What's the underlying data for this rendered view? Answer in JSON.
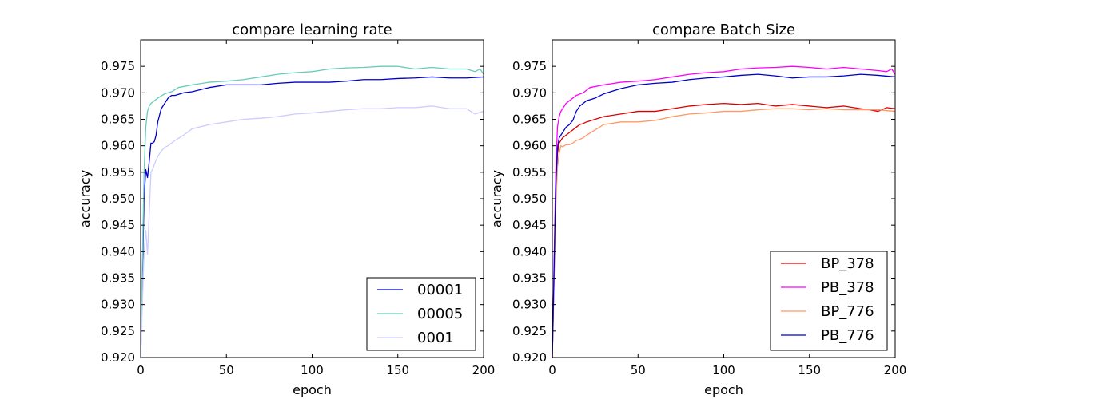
{
  "chart_data": [
    {
      "type": "line",
      "title": "compare learning rate",
      "xlabel": "epoch",
      "ylabel": "accuracy",
      "xlim": [
        0,
        200
      ],
      "ylim": [
        0.92,
        0.98
      ],
      "xticks": [
        "0",
        "50",
        "100",
        "150",
        "200"
      ],
      "yticks": [
        "0.920",
        "0.925",
        "0.930",
        "0.935",
        "0.940",
        "0.945",
        "0.950",
        "0.955",
        "0.960",
        "0.965",
        "0.970",
        "0.975"
      ],
      "grid": false,
      "legend": "lower-right",
      "series": [
        {
          "name": "00001",
          "color": "#0000cc",
          "x": [
            0,
            2,
            3,
            4,
            5,
            6,
            7,
            8,
            9,
            10,
            12,
            14,
            16,
            18,
            20,
            25,
            30,
            40,
            50,
            60,
            70,
            80,
            90,
            100,
            110,
            120,
            130,
            140,
            150,
            160,
            170,
            180,
            190,
            200
          ],
          "y": [
            0.92,
            0.95,
            0.9555,
            0.954,
            0.957,
            0.9605,
            0.9605,
            0.9608,
            0.962,
            0.9645,
            0.967,
            0.968,
            0.969,
            0.9695,
            0.9695,
            0.97,
            0.9702,
            0.971,
            0.9715,
            0.9715,
            0.9715,
            0.9718,
            0.972,
            0.972,
            0.972,
            0.9722,
            0.9725,
            0.9725,
            0.9727,
            0.9728,
            0.973,
            0.9728,
            0.9728,
            0.973
          ]
        },
        {
          "name": "00005",
          "color": "#66ccbb",
          "x": [
            0,
            2,
            3,
            4,
            5,
            6,
            8,
            10,
            14,
            18,
            22,
            30,
            40,
            50,
            60,
            70,
            80,
            90,
            100,
            110,
            120,
            130,
            140,
            150,
            160,
            170,
            180,
            190,
            195,
            198,
            200
          ],
          "y": [
            0.92,
            0.955,
            0.9635,
            0.9665,
            0.9675,
            0.968,
            0.9685,
            0.969,
            0.9698,
            0.9702,
            0.971,
            0.9715,
            0.972,
            0.9722,
            0.9725,
            0.973,
            0.9735,
            0.9738,
            0.974,
            0.9745,
            0.9747,
            0.9748,
            0.975,
            0.975,
            0.9745,
            0.9748,
            0.9745,
            0.9745,
            0.974,
            0.9745,
            0.9735
          ]
        },
        {
          "name": "0001",
          "color": "#ccccff",
          "x": [
            0,
            2,
            3,
            4,
            5,
            6,
            7,
            8,
            10,
            12,
            14,
            16,
            18,
            20,
            25,
            30,
            40,
            50,
            60,
            70,
            80,
            90,
            100,
            110,
            120,
            130,
            140,
            150,
            160,
            170,
            180,
            190,
            195,
            200
          ],
          "y": [
            0.92,
            0.94,
            0.944,
            0.9395,
            0.947,
            0.955,
            0.9555,
            0.9565,
            0.958,
            0.959,
            0.9597,
            0.96,
            0.9605,
            0.961,
            0.962,
            0.9632,
            0.964,
            0.9645,
            0.965,
            0.9652,
            0.9655,
            0.966,
            0.9662,
            0.9665,
            0.9668,
            0.967,
            0.967,
            0.9672,
            0.9672,
            0.9675,
            0.967,
            0.967,
            0.966,
            0.9665
          ]
        }
      ]
    },
    {
      "type": "line",
      "title": "compare Batch Size",
      "xlabel": "epoch",
      "ylabel": "accuracy",
      "xlim": [
        0,
        200
      ],
      "ylim": [
        0.92,
        0.98
      ],
      "xticks": [
        "0",
        "50",
        "100",
        "150",
        "200"
      ],
      "yticks": [
        "0.920",
        "0.925",
        "0.930",
        "0.935",
        "0.940",
        "0.945",
        "0.950",
        "0.955",
        "0.960",
        "0.965",
        "0.970",
        "0.975"
      ],
      "grid": false,
      "legend": "lower-right",
      "series": [
        {
          "name": "BP_378",
          "color": "#dd0000",
          "x": [
            0,
            2,
            3,
            4,
            5,
            6,
            8,
            10,
            12,
            14,
            16,
            18,
            20,
            25,
            30,
            40,
            50,
            60,
            70,
            80,
            90,
            100,
            110,
            120,
            130,
            140,
            150,
            160,
            170,
            180,
            185,
            190,
            195,
            200
          ],
          "y": [
            0.92,
            0.95,
            0.9585,
            0.9605,
            0.961,
            0.9615,
            0.962,
            0.9625,
            0.963,
            0.9635,
            0.964,
            0.9642,
            0.9645,
            0.965,
            0.9655,
            0.966,
            0.9665,
            0.9665,
            0.967,
            0.9675,
            0.9678,
            0.968,
            0.9678,
            0.968,
            0.9675,
            0.9678,
            0.9675,
            0.9672,
            0.9675,
            0.967,
            0.9668,
            0.9665,
            0.9672,
            0.967
          ]
        },
        {
          "name": "PB_378",
          "color": "#ff00ff",
          "x": [
            0,
            2,
            3,
            4,
            5,
            6,
            8,
            10,
            14,
            18,
            22,
            30,
            40,
            50,
            60,
            70,
            80,
            90,
            100,
            110,
            120,
            130,
            140,
            150,
            160,
            170,
            180,
            190,
            195,
            198,
            200
          ],
          "y": [
            0.92,
            0.955,
            0.9635,
            0.9655,
            0.9665,
            0.967,
            0.968,
            0.9685,
            0.9695,
            0.97,
            0.971,
            0.9715,
            0.972,
            0.9722,
            0.9725,
            0.973,
            0.9735,
            0.9738,
            0.974,
            0.9745,
            0.9747,
            0.9748,
            0.975,
            0.9748,
            0.9745,
            0.9748,
            0.9745,
            0.9742,
            0.974,
            0.9745,
            0.9735
          ]
        },
        {
          "name": "BP_776",
          "color": "#ff9966",
          "x": [
            0,
            2,
            3,
            4,
            5,
            6,
            8,
            10,
            12,
            14,
            16,
            18,
            20,
            25,
            30,
            40,
            50,
            60,
            70,
            80,
            90,
            100,
            110,
            120,
            130,
            140,
            150,
            160,
            170,
            180,
            190,
            200
          ],
          "y": [
            0.92,
            0.948,
            0.956,
            0.9585,
            0.96,
            0.9598,
            0.9602,
            0.9602,
            0.9605,
            0.961,
            0.9612,
            0.9615,
            0.962,
            0.963,
            0.964,
            0.9645,
            0.9645,
            0.9648,
            0.9655,
            0.966,
            0.9662,
            0.9665,
            0.9665,
            0.9668,
            0.967,
            0.967,
            0.9668,
            0.967,
            0.9668,
            0.9668,
            0.9668,
            0.9665
          ]
        },
        {
          "name": "PB_776",
          "color": "#0000cc",
          "x": [
            0,
            2,
            3,
            4,
            5,
            6,
            8,
            10,
            12,
            14,
            16,
            18,
            20,
            25,
            30,
            40,
            50,
            60,
            70,
            80,
            90,
            100,
            110,
            120,
            130,
            140,
            150,
            160,
            170,
            180,
            190,
            200
          ],
          "y": [
            0.92,
            0.952,
            0.9595,
            0.9615,
            0.962,
            0.9625,
            0.9635,
            0.964,
            0.9648,
            0.9665,
            0.9675,
            0.968,
            0.9685,
            0.969,
            0.9698,
            0.9708,
            0.9715,
            0.9718,
            0.972,
            0.9725,
            0.9728,
            0.973,
            0.9733,
            0.9735,
            0.9732,
            0.9728,
            0.973,
            0.973,
            0.9732,
            0.9735,
            0.9733,
            0.973
          ]
        }
      ]
    }
  ]
}
